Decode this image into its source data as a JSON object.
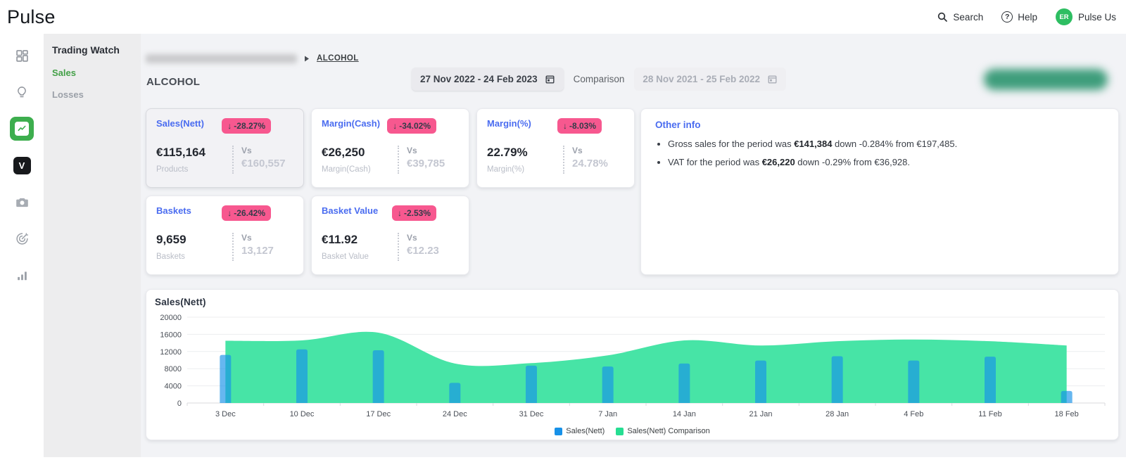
{
  "brand": "Pulse",
  "topbar": {
    "search_label": "Search",
    "help_label": "Help",
    "help_glyph": "?",
    "user_initials": "ER",
    "user_name": "Pulse Us"
  },
  "icon_rail": {
    "icons": [
      {
        "name": "dashboard-icon"
      },
      {
        "name": "ideas-icon"
      },
      {
        "name": "trading-watch-icon",
        "active": true
      },
      {
        "name": "v-logo-icon",
        "glyph": "V"
      },
      {
        "name": "camera-icon"
      },
      {
        "name": "target-icon"
      },
      {
        "name": "stats-icon"
      }
    ]
  },
  "sidebar": {
    "title": "Trading Watch",
    "items": [
      {
        "label": "Sales",
        "active": true
      },
      {
        "label": "Losses",
        "active": false
      }
    ]
  },
  "breadcrumb": {
    "current": "ALCOHOL"
  },
  "page": {
    "title": "ALCOHOL"
  },
  "filters": {
    "date_range": "27 Nov 2022 - 24 Feb 2023",
    "comparison_label": "Comparison",
    "comparison_range": "28 Nov 2021 - 25 Feb 2022"
  },
  "kpis": [
    {
      "title": "Sales(Nett)",
      "change": "-28.27%",
      "value": "€115,164",
      "sublabel": "Products",
      "vs_label": "Vs",
      "vs_value": "€160,557",
      "selected": true
    },
    {
      "title": "Margin(Cash)",
      "change": "-34.02%",
      "value": "€26,250",
      "sublabel": "Margin(Cash)",
      "vs_label": "Vs",
      "vs_value": "€39,785",
      "selected": false
    },
    {
      "title": "Margin(%)",
      "change": "-8.03%",
      "value": "22.79%",
      "sublabel": "Margin(%)",
      "vs_label": "Vs",
      "vs_value": "24.78%",
      "selected": false
    },
    {
      "title": "Baskets",
      "change": "-26.42%",
      "value": "9,659",
      "sublabel": "Baskets",
      "vs_label": "Vs",
      "vs_value": "13,127",
      "selected": false
    },
    {
      "title": "Basket Value",
      "change": "-2.53%",
      "value": "€11.92",
      "sublabel": "Basket Value",
      "vs_label": "Vs",
      "vs_value": "€12.23",
      "selected": false
    }
  ],
  "other_info": {
    "title": "Other info",
    "bullets": [
      {
        "text_before": "Gross sales for the period was ",
        "highlight": "€141,384",
        "text_after": " down -0.284% from €197,485."
      },
      {
        "text_before": "VAT for the period was ",
        "highlight": "€26,220",
        "text_after": " down -0.29% from €36,928."
      }
    ]
  },
  "chart_data": {
    "type": "bar",
    "title": "Sales(Nett)",
    "categories": [
      "3 Dec",
      "10 Dec",
      "17 Dec",
      "24 Dec",
      "31 Dec",
      "7 Jan",
      "14 Jan",
      "21 Jan",
      "28 Jan",
      "4 Feb",
      "11 Feb",
      "18 Feb"
    ],
    "series": [
      {
        "name": "Sales(Nett)",
        "type": "bar",
        "color": "#1791E8",
        "bar_fill": "rgba(23,146,232,0.66)",
        "values": [
          11200,
          12500,
          12300,
          4700,
          8700,
          8500,
          9200,
          9900,
          10900,
          9900,
          10800,
          2800
        ]
      },
      {
        "name": "Sales(Nett) Comparison",
        "type": "area",
        "color": "#26DE92",
        "area_fill": "#47E4A6",
        "values": [
          14500,
          14600,
          16400,
          9200,
          9300,
          11100,
          14600,
          13400,
          14400,
          14800,
          14400,
          13400
        ]
      }
    ],
    "ylim": [
      0,
      20000
    ],
    "yticks": [
      0,
      4000,
      8000,
      12000,
      16000,
      20000
    ],
    "xlabel": "",
    "ylabel": "",
    "grid": true,
    "legend_position": "bottom"
  },
  "colors": {
    "accent_green": "#3DAE4E",
    "sidebar_active_green": "#43A047",
    "link_blue": "#4A6CF0",
    "badge_pink": "#F7588F",
    "bar_blue": "#1791E8",
    "area_green": "#47E4A6",
    "avatar_green": "#2EBE62"
  }
}
